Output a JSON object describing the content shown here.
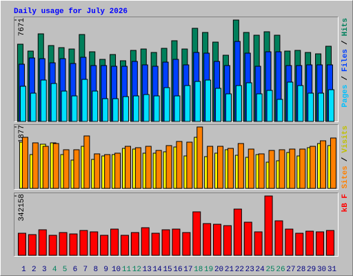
{
  "chart_data": [
    {
      "type": "bar",
      "title": "Daily usage for July 2026",
      "ylim": [
        0,
        7671
      ],
      "yticks": [
        7671
      ],
      "legend_separator": "/",
      "series": [
        {
          "name": "Hits",
          "color": "#00805c",
          "label_color": "#00805c",
          "values": [
            5844,
            5323,
            6627,
            5740,
            5583,
            5479,
            6575,
            5270,
            4696,
            5062,
            4592,
            5375,
            5479,
            5218,
            5531,
            6105,
            5479,
            7045,
            6731,
            6001,
            5009,
            7671,
            6731,
            6523,
            6784,
            6523,
            5323,
            5375,
            5218,
            5114,
            5688
          ]
        },
        {
          "name": "Files",
          "color": "#0040ff",
          "label_color": "#0040ff",
          "values": [
            4331,
            4801,
            4748,
            4435,
            4748,
            4383,
            4853,
            4227,
            4227,
            4174,
            4174,
            4540,
            4279,
            4174,
            4487,
            4696,
            4279,
            5218,
            5166,
            4540,
            4227,
            6053,
            5166,
            4174,
            5270,
            5270,
            4227,
            4227,
            4279,
            4279,
            4279
          ]
        },
        {
          "name": "Pages",
          "color": "#00e0ff",
          "label_color": "#00c0ff",
          "values": [
            2661,
            2139,
            3131,
            2870,
            2296,
            1931,
            3183,
            2296,
            1722,
            1722,
            1878,
            1931,
            2035,
            1931,
            2557,
            1931,
            2713,
            3026,
            3131,
            2505,
            2087,
            2713,
            2922,
            2087,
            2348,
            1670,
            2974,
            2713,
            2139,
            2139,
            2400
          ]
        }
      ]
    },
    {
      "type": "bar",
      "ylim": [
        0,
        1877
      ],
      "yticks": [
        1877
      ],
      "legend_separator": "/",
      "series": [
        {
          "name": "Visits",
          "color": "#ffff00",
          "label_color": "#c0c000",
          "values": [
            1413,
            1033,
            1350,
            1392,
            1033,
            865,
            1286,
            886,
            991,
            1033,
            1223,
            1202,
            1076,
            1076,
            1118,
            1265,
            991,
            1561,
            970,
            1076,
            1181,
            1012,
            949,
            1033,
            801,
            844,
            1097,
            991,
            1244,
            1371,
            1308
          ]
        },
        {
          "name": "Sites",
          "color": "#ff8000",
          "label_color": "#ff8000",
          "values": [
            1561,
            1392,
            1286,
            1371,
            1181,
            1181,
            1603,
            1055,
            1033,
            1076,
            1286,
            1244,
            1286,
            1160,
            1308,
            1434,
            1413,
            1877,
            1286,
            1286,
            1223,
            1371,
            1202,
            1055,
            1160,
            1181,
            1202,
            1202,
            1286,
            1455,
            1540
          ]
        }
      ]
    },
    {
      "type": "bar",
      "ylim": [
        0,
        342158
      ],
      "yticks": [
        342158
      ],
      "categories": [
        "1",
        "2",
        "3",
        "4",
        "5",
        "6",
        "7",
        "8",
        "9",
        "10",
        "11",
        "12",
        "13",
        "14",
        "15",
        "16",
        "17",
        "18",
        "19",
        "20",
        "21",
        "22",
        "23",
        "24",
        "25",
        "26",
        "27",
        "28",
        "29",
        "30",
        "31"
      ],
      "category_label_colors": [
        "#000080",
        "#000080",
        "#000080",
        "#00805c",
        "#00805c",
        "#000080",
        "#000080",
        "#000080",
        "#000080",
        "#000080",
        "#00805c",
        "#00805c",
        "#000080",
        "#000080",
        "#000080",
        "#000080",
        "#000080",
        "#00805c",
        "#00805c",
        "#000080",
        "#000080",
        "#000080",
        "#000080",
        "#000080",
        "#00805c",
        "#00805c",
        "#000080",
        "#000080",
        "#000080",
        "#000080",
        "#000080"
      ],
      "series": [
        {
          "name": "kB F",
          "color": "#ff0000",
          "label_color": "#ff0000",
          "values": [
            127328,
            119370,
            147223,
            115391,
            131307,
            123349,
            143244,
            135286,
            115391,
            151202,
            115391,
            131307,
            159160,
            127328,
            147223,
            151202,
            131307,
            250677,
            183034,
            179055,
            171097,
            266593,
            190992,
            135286,
            342158,
            198950,
            151202,
            127328,
            139265,
            135286,
            143244
          ]
        }
      ]
    }
  ]
}
